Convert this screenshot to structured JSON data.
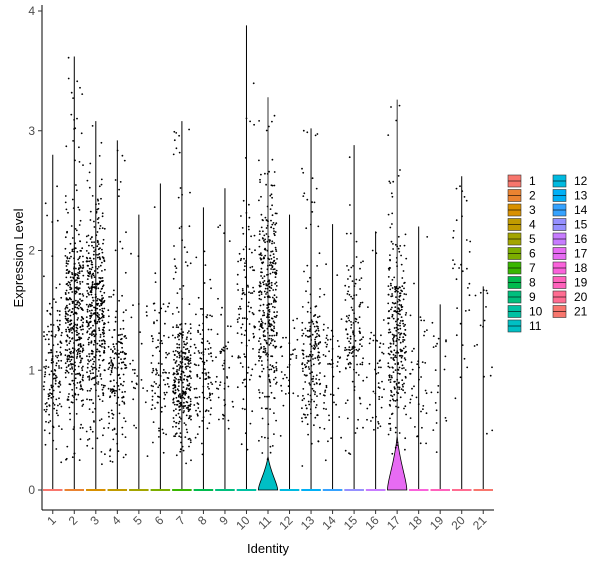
{
  "chart_data": {
    "type": "violin",
    "title": "",
    "xlabel": "Identity",
    "ylabel": "Expression Level",
    "ylim": [
      0,
      4
    ],
    "yticks": [
      0,
      1,
      2,
      3,
      4
    ],
    "grid": false,
    "legend_position": "right",
    "legend_columns": 2,
    "categories": [
      "1",
      "2",
      "3",
      "4",
      "5",
      "6",
      "7",
      "8",
      "9",
      "10",
      "11",
      "12",
      "13",
      "14",
      "15",
      "16",
      "17",
      "18",
      "19",
      "20",
      "21"
    ],
    "colors": [
      "#F8766D",
      "#EA8331",
      "#D89000",
      "#C09B00",
      "#A3A500",
      "#7CAE00",
      "#39B600",
      "#00BB4E",
      "#00BF7D",
      "#00C1A3",
      "#00BFC4",
      "#00BAE0",
      "#00B0F6",
      "#35A2FF",
      "#9590FF",
      "#C77CFF",
      "#E76BF3",
      "#FA62DB",
      "#FF62BC",
      "#FF6C91",
      "#F8766D"
    ],
    "max_values": [
      2.8,
      3.62,
      3.08,
      2.92,
      2.3,
      2.56,
      3.08,
      2.36,
      2.52,
      3.88,
      3.28,
      2.3,
      3.02,
      2.22,
      2.88,
      2.16,
      3.26,
      2.2,
      1.55,
      2.62,
      1.7
    ],
    "density": [
      0.35,
      1.0,
      1.0,
      0.4,
      0.05,
      0.2,
      0.75,
      0.25,
      0.1,
      0.25,
      0.85,
      0.06,
      0.45,
      0.12,
      0.3,
      0.1,
      0.7,
      0.08,
      0.03,
      0.06,
      0.02
    ],
    "mean_nonzero": [
      1.0,
      1.4,
      1.5,
      1.0,
      1.0,
      1.0,
      0.9,
      1.0,
      1.0,
      1.5,
      1.6,
      1.0,
      1.1,
      1.0,
      1.3,
      1.0,
      1.3,
      1.0,
      1.0,
      1.7,
      1.5
    ],
    "violin_bulge": [
      0,
      0,
      0,
      0,
      0,
      0,
      0,
      0,
      0,
      0,
      0.28,
      0,
      0,
      0,
      0,
      0,
      0.45,
      0,
      0,
      0,
      0
    ]
  }
}
